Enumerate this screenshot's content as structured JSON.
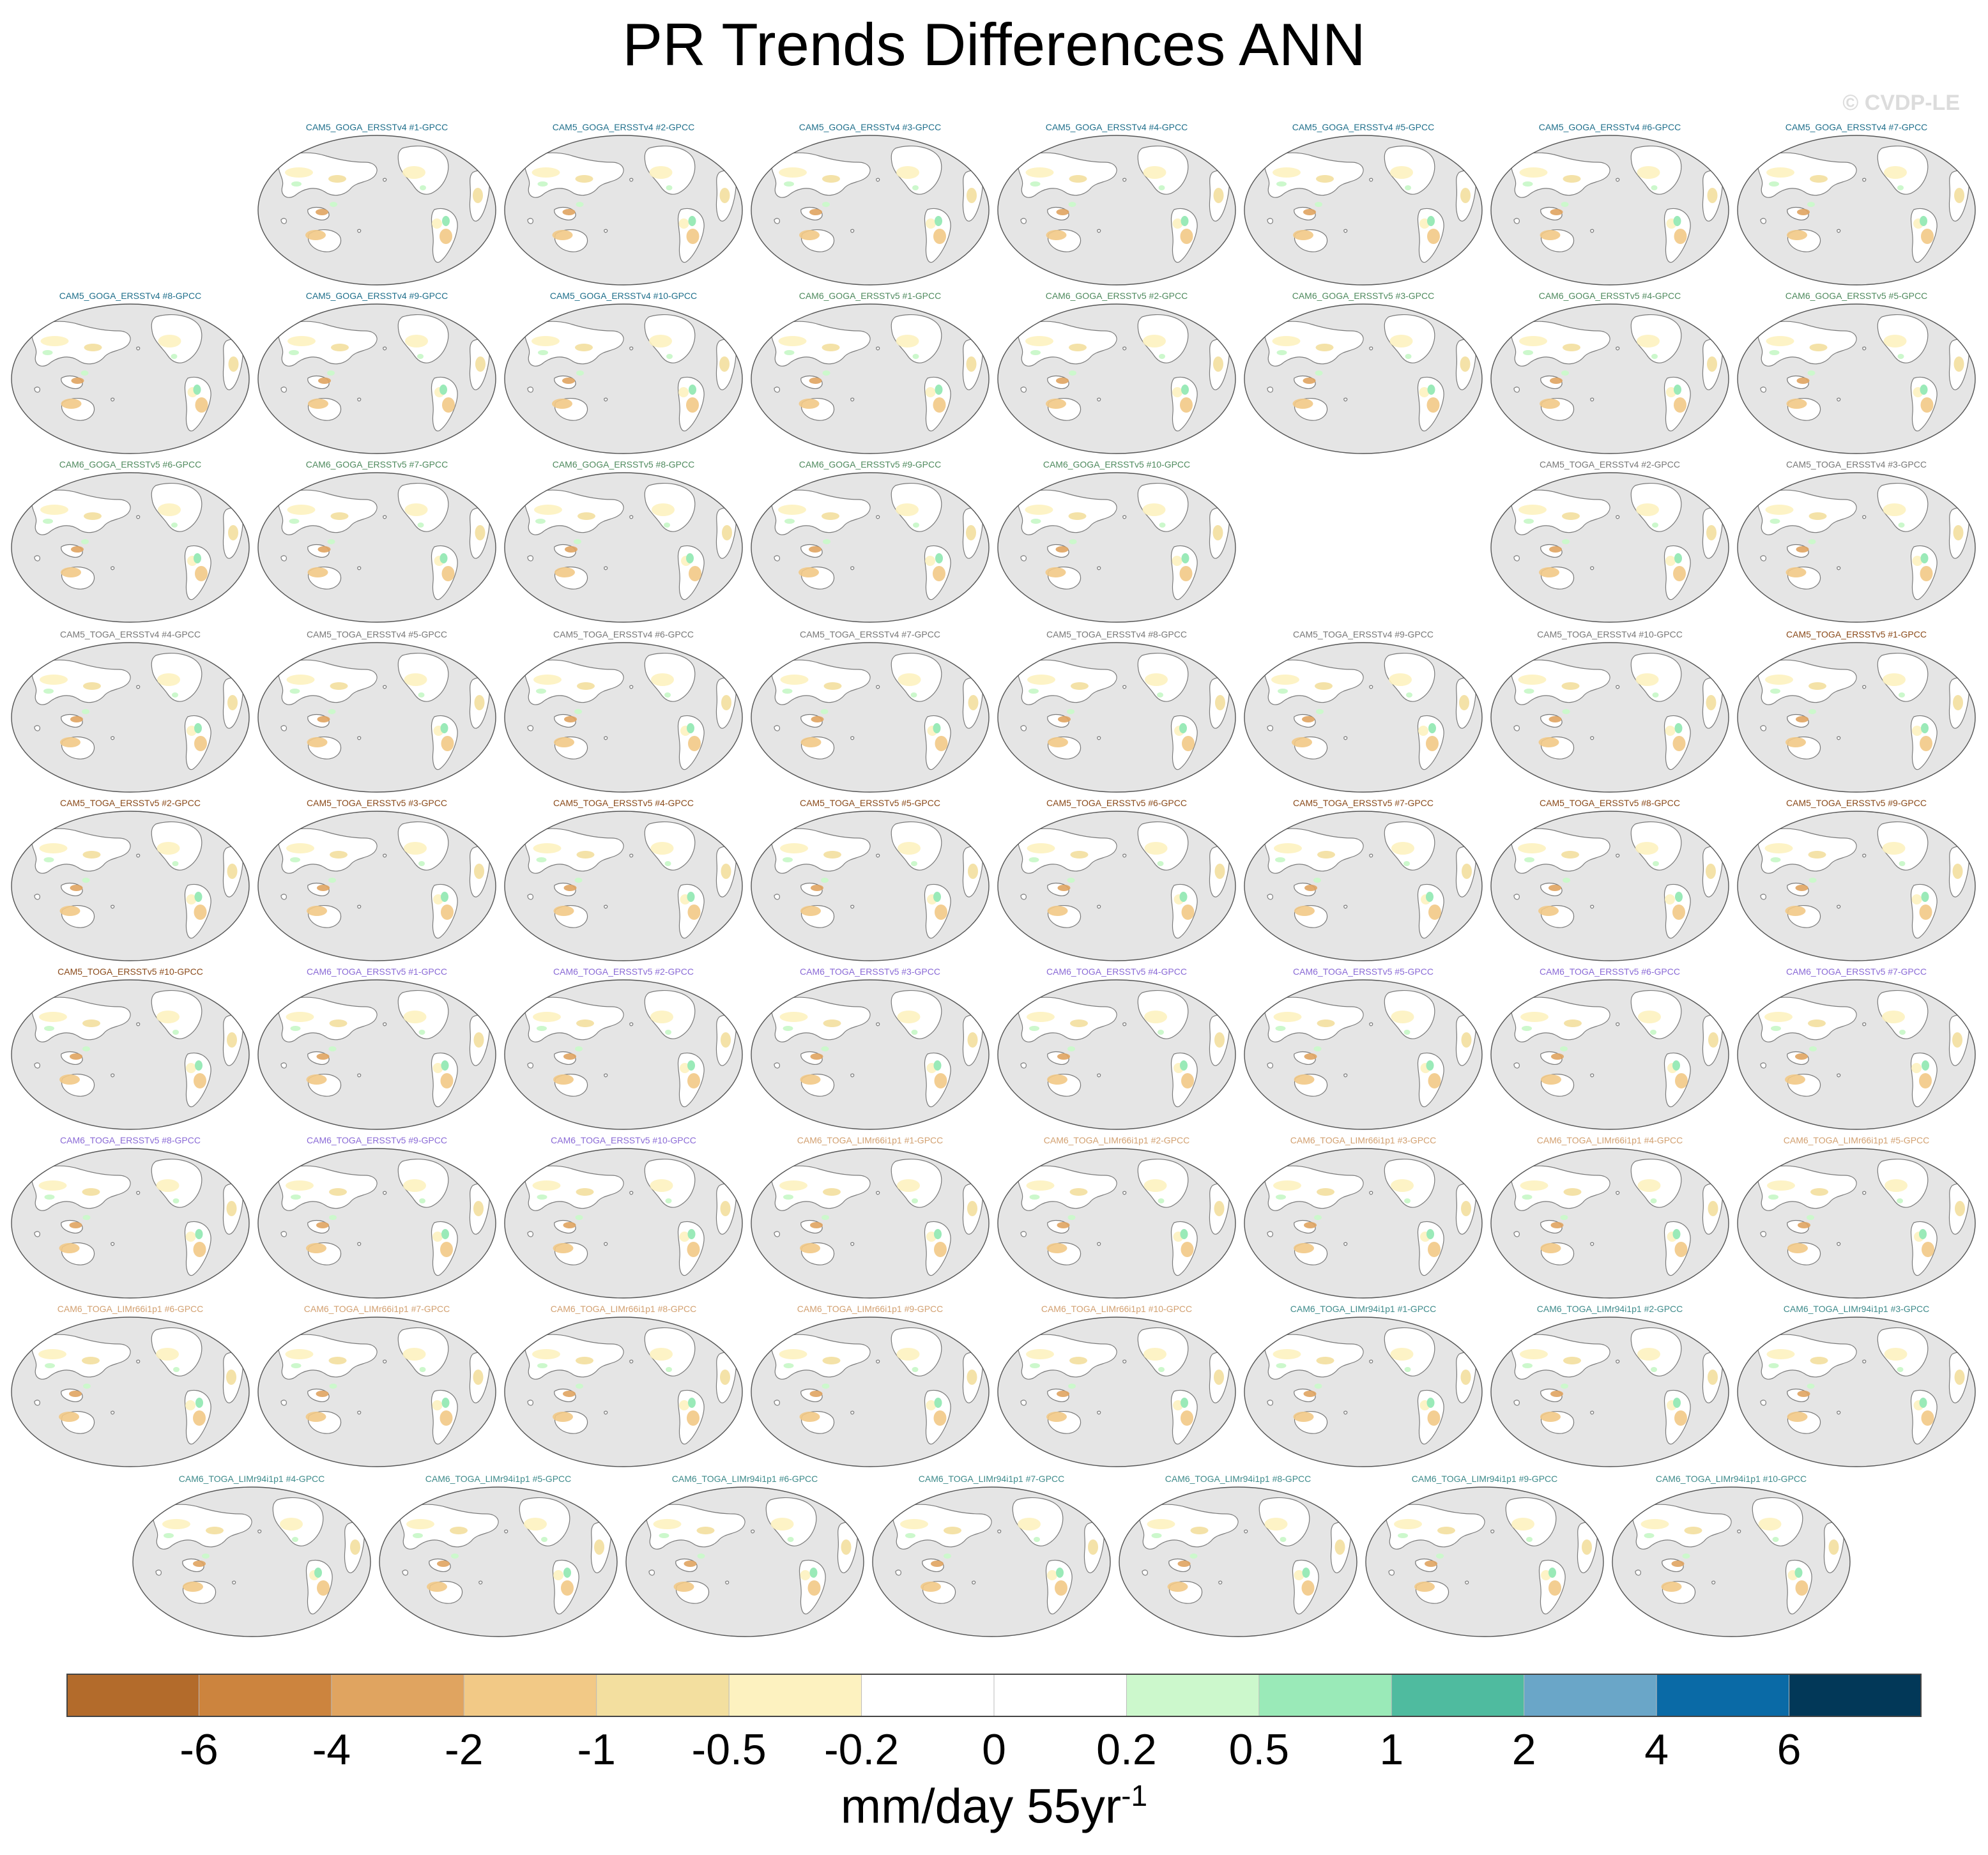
{
  "title": "PR Trends Differences ANN",
  "credit": "© CVDP-LE",
  "colors": {
    "ocean": "#e5e5e5",
    "coast": "#7a7a7a",
    "GOGA_ERSSTv4": "#1f6f8b",
    "GOGA_ERSSTv5": "#4f8a5e",
    "TOGA_ERSSTv4": "#777777",
    "CAM5_TOGA_ERSSTv5": "#8a4a1a",
    "CAM6_TOGA_ERSSTv5": "#8a6ad6",
    "TOGA_LIMr66": "#d2a070",
    "TOGA_LIMr94": "#3d8a8a"
  },
  "panels": [
    {
      "title": "CAM5_GOGA_ERSSTv4 #1-GPCC",
      "group": "GOGA_ERSSTv4"
    },
    {
      "title": "CAM5_GOGA_ERSSTv4 #2-GPCC",
      "group": "GOGA_ERSSTv4"
    },
    {
      "title": "CAM5_GOGA_ERSSTv4 #3-GPCC",
      "group": "GOGA_ERSSTv4"
    },
    {
      "title": "CAM5_GOGA_ERSSTv4 #4-GPCC",
      "group": "GOGA_ERSSTv4"
    },
    {
      "title": "CAM5_GOGA_ERSSTv4 #5-GPCC",
      "group": "GOGA_ERSSTv4"
    },
    {
      "title": "CAM5_GOGA_ERSSTv4 #6-GPCC",
      "group": "GOGA_ERSSTv4"
    },
    {
      "title": "CAM5_GOGA_ERSSTv4 #7-GPCC",
      "group": "GOGA_ERSSTv4"
    },
    {
      "title": "CAM5_GOGA_ERSSTv4 #8-GPCC",
      "group": "GOGA_ERSSTv4"
    },
    {
      "title": "CAM5_GOGA_ERSSTv4 #9-GPCC",
      "group": "GOGA_ERSSTv4"
    },
    {
      "title": "CAM5_GOGA_ERSSTv4 #10-GPCC",
      "group": "GOGA_ERSSTv4"
    },
    {
      "title": "CAM6_GOGA_ERSSTv5 #1-GPCC",
      "group": "GOGA_ERSSTv5"
    },
    {
      "title": "CAM6_GOGA_ERSSTv5 #2-GPCC",
      "group": "GOGA_ERSSTv5"
    },
    {
      "title": "CAM6_GOGA_ERSSTv5 #3-GPCC",
      "group": "GOGA_ERSSTv5"
    },
    {
      "title": "CAM6_GOGA_ERSSTv5 #4-GPCC",
      "group": "GOGA_ERSSTv5"
    },
    {
      "title": "CAM6_GOGA_ERSSTv5 #5-GPCC",
      "group": "GOGA_ERSSTv5"
    },
    {
      "title": "CAM6_GOGA_ERSSTv5 #6-GPCC",
      "group": "GOGA_ERSSTv5"
    },
    {
      "title": "CAM6_GOGA_ERSSTv5 #7-GPCC",
      "group": "GOGA_ERSSTv5"
    },
    {
      "title": "CAM6_GOGA_ERSSTv5 #8-GPCC",
      "group": "GOGA_ERSSTv5"
    },
    {
      "title": "CAM6_GOGA_ERSSTv5 #9-GPCC",
      "group": "GOGA_ERSSTv5"
    },
    {
      "title": "CAM6_GOGA_ERSSTv5 #10-GPCC",
      "group": "GOGA_ERSSTv5"
    },
    {
      "title": "CAM5_TOGA_ERSSTv4 #2-GPCC",
      "group": "TOGA_ERSSTv4"
    },
    {
      "title": "CAM5_TOGA_ERSSTv4 #3-GPCC",
      "group": "TOGA_ERSSTv4"
    },
    {
      "title": "CAM5_TOGA_ERSSTv4 #4-GPCC",
      "group": "TOGA_ERSSTv4"
    },
    {
      "title": "CAM5_TOGA_ERSSTv4 #5-GPCC",
      "group": "TOGA_ERSSTv4"
    },
    {
      "title": "CAM5_TOGA_ERSSTv4 #6-GPCC",
      "group": "TOGA_ERSSTv4"
    },
    {
      "title": "CAM5_TOGA_ERSSTv4 #7-GPCC",
      "group": "TOGA_ERSSTv4"
    },
    {
      "title": "CAM5_TOGA_ERSSTv4 #8-GPCC",
      "group": "TOGA_ERSSTv4"
    },
    {
      "title": "CAM5_TOGA_ERSSTv4 #9-GPCC",
      "group": "TOGA_ERSSTv4"
    },
    {
      "title": "CAM5_TOGA_ERSSTv4 #10-GPCC",
      "group": "TOGA_ERSSTv4"
    },
    {
      "title": "CAM5_TOGA_ERSSTv5 #1-GPCC",
      "group": "CAM5_TOGA_ERSSTv5"
    },
    {
      "title": "CAM5_TOGA_ERSSTv5 #2-GPCC",
      "group": "CAM5_TOGA_ERSSTv5"
    },
    {
      "title": "CAM5_TOGA_ERSSTv5 #3-GPCC",
      "group": "CAM5_TOGA_ERSSTv5"
    },
    {
      "title": "CAM5_TOGA_ERSSTv5 #4-GPCC",
      "group": "CAM5_TOGA_ERSSTv5"
    },
    {
      "title": "CAM5_TOGA_ERSSTv5 #5-GPCC",
      "group": "CAM5_TOGA_ERSSTv5"
    },
    {
      "title": "CAM5_TOGA_ERSSTv5 #6-GPCC",
      "group": "CAM5_TOGA_ERSSTv5"
    },
    {
      "title": "CAM5_TOGA_ERSSTv5 #7-GPCC",
      "group": "CAM5_TOGA_ERSSTv5"
    },
    {
      "title": "CAM5_TOGA_ERSSTv5 #8-GPCC",
      "group": "CAM5_TOGA_ERSSTv5"
    },
    {
      "title": "CAM5_TOGA_ERSSTv5 #9-GPCC",
      "group": "CAM5_TOGA_ERSSTv5"
    },
    {
      "title": "CAM5_TOGA_ERSSTv5 #10-GPCC",
      "group": "CAM5_TOGA_ERSSTv5"
    },
    {
      "title": "CAM6_TOGA_ERSSTv5 #1-GPCC",
      "group": "CAM6_TOGA_ERSSTv5"
    },
    {
      "title": "CAM6_TOGA_ERSSTv5 #2-GPCC",
      "group": "CAM6_TOGA_ERSSTv5"
    },
    {
      "title": "CAM6_TOGA_ERSSTv5 #3-GPCC",
      "group": "CAM6_TOGA_ERSSTv5"
    },
    {
      "title": "CAM6_TOGA_ERSSTv5 #4-GPCC",
      "group": "CAM6_TOGA_ERSSTv5"
    },
    {
      "title": "CAM6_TOGA_ERSSTv5 #5-GPCC",
      "group": "CAM6_TOGA_ERSSTv5"
    },
    {
      "title": "CAM6_TOGA_ERSSTv5 #6-GPCC",
      "group": "CAM6_TOGA_ERSSTv5"
    },
    {
      "title": "CAM6_TOGA_ERSSTv5 #7-GPCC",
      "group": "CAM6_TOGA_ERSSTv5"
    },
    {
      "title": "CAM6_TOGA_ERSSTv5 #8-GPCC",
      "group": "CAM6_TOGA_ERSSTv5"
    },
    {
      "title": "CAM6_TOGA_ERSSTv5 #9-GPCC",
      "group": "CAM6_TOGA_ERSSTv5"
    },
    {
      "title": "CAM6_TOGA_ERSSTv5 #10-GPCC",
      "group": "CAM6_TOGA_ERSSTv5"
    },
    {
      "title": "CAM6_TOGA_LIMr66i1p1 #1-GPCC",
      "group": "TOGA_LIMr66"
    },
    {
      "title": "CAM6_TOGA_LIMr66i1p1 #2-GPCC",
      "group": "TOGA_LIMr66"
    },
    {
      "title": "CAM6_TOGA_LIMr66i1p1 #3-GPCC",
      "group": "TOGA_LIMr66"
    },
    {
      "title": "CAM6_TOGA_LIMr66i1p1 #4-GPCC",
      "group": "TOGA_LIMr66"
    },
    {
      "title": "CAM6_TOGA_LIMr66i1p1 #5-GPCC",
      "group": "TOGA_LIMr66"
    },
    {
      "title": "CAM6_TOGA_LIMr66i1p1 #6-GPCC",
      "group": "TOGA_LIMr66"
    },
    {
      "title": "CAM6_TOGA_LIMr66i1p1 #7-GPCC",
      "group": "TOGA_LIMr66"
    },
    {
      "title": "CAM6_TOGA_LIMr66i1p1 #8-GPCC",
      "group": "TOGA_LIMr66"
    },
    {
      "title": "CAM6_TOGA_LIMr66i1p1 #9-GPCC",
      "group": "TOGA_LIMr66"
    },
    {
      "title": "CAM6_TOGA_LIMr66i1p1 #10-GPCC",
      "group": "TOGA_LIMr66"
    },
    {
      "title": "CAM6_TOGA_LIMr94i1p1 #1-GPCC",
      "group": "TOGA_LIMr94"
    },
    {
      "title": "CAM6_TOGA_LIMr94i1p1 #2-GPCC",
      "group": "TOGA_LIMr94"
    },
    {
      "title": "CAM6_TOGA_LIMr94i1p1 #3-GPCC",
      "group": "TOGA_LIMr94"
    },
    {
      "title": "CAM6_TOGA_LIMr94i1p1 #4-GPCC",
      "group": "TOGA_LIMr94"
    },
    {
      "title": "CAM6_TOGA_LIMr94i1p1 #5-GPCC",
      "group": "TOGA_LIMr94"
    },
    {
      "title": "CAM6_TOGA_LIMr94i1p1 #6-GPCC",
      "group": "TOGA_LIMr94"
    },
    {
      "title": "CAM6_TOGA_LIMr94i1p1 #7-GPCC",
      "group": "TOGA_LIMr94"
    },
    {
      "title": "CAM6_TOGA_LIMr94i1p1 #8-GPCC",
      "group": "TOGA_LIMr94"
    },
    {
      "title": "CAM6_TOGA_LIMr94i1p1 #9-GPCC",
      "group": "TOGA_LIMr94"
    },
    {
      "title": "CAM6_TOGA_LIMr94i1p1 #10-GPCC",
      "group": "TOGA_LIMr94"
    }
  ],
  "colorbar": {
    "colors": [
      "#b36b2b",
      "#cc843e",
      "#e0a460",
      "#f2c986",
      "#f3df9f",
      "#fdf2c0",
      "#ffffff",
      "#ffffff",
      "#ccf8cc",
      "#9aeab8",
      "#4fbb9f",
      "#6aa6c8",
      "#0a6aa6",
      "#023858"
    ],
    "labels": [
      "-6",
      "-4",
      "-2",
      "-1",
      "-0.5",
      "-0.2",
      "0",
      "0.2",
      "0.5",
      "1",
      "2",
      "4",
      "6"
    ]
  },
  "units": "mm/day 55yr",
  "units_sup": "-1"
}
